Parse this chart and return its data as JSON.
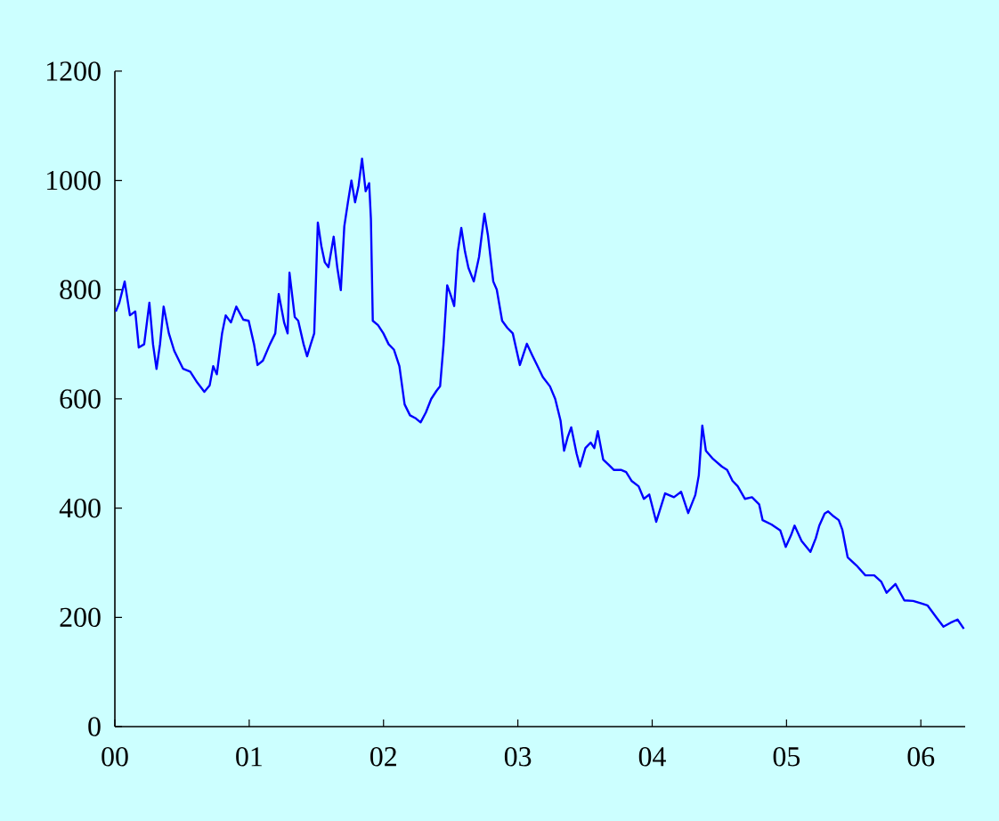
{
  "chart_data": {
    "type": "line",
    "x": [
      2000.007,
      2000.033,
      2000.073,
      2000.112,
      2000.152,
      2000.178,
      2000.218,
      2000.257,
      2000.284,
      2000.31,
      2000.336,
      2000.363,
      2000.402,
      2000.442,
      2000.508,
      2000.561,
      2000.613,
      2000.666,
      2000.706,
      2000.732,
      2000.759,
      2000.798,
      2000.825,
      2000.864,
      2000.904,
      2000.956,
      2000.996,
      2001.036,
      2001.062,
      2001.102,
      2001.154,
      2001.194,
      2001.22,
      2001.26,
      2001.286,
      2001.3,
      2001.339,
      2001.365,
      2001.405,
      2001.431,
      2001.458,
      2001.484,
      2001.511,
      2001.537,
      2001.563,
      2001.59,
      2001.629,
      2001.656,
      2001.682,
      2001.708,
      2001.735,
      2001.761,
      2001.788,
      2001.814,
      2001.84,
      2001.867,
      2001.893,
      2001.906,
      2001.92,
      2001.959,
      2001.999,
      2002.038,
      2002.078,
      2002.118,
      2002.157,
      2002.197,
      2002.236,
      2002.276,
      2002.315,
      2002.355,
      2002.395,
      2002.421,
      2002.447,
      2002.474,
      2002.5,
      2002.526,
      2002.553,
      2002.579,
      2002.606,
      2002.632,
      2002.672,
      2002.711,
      2002.751,
      2002.777,
      2002.817,
      2002.843,
      2002.883,
      2002.922,
      2002.962,
      2003.015,
      2003.067,
      2003.107,
      2003.147,
      2003.186,
      2003.239,
      2003.278,
      2003.318,
      2003.344,
      2003.371,
      2003.397,
      2003.437,
      2003.463,
      2003.503,
      2003.542,
      2003.569,
      2003.595,
      2003.635,
      2003.674,
      2003.714,
      2003.767,
      2003.806,
      2003.846,
      2003.899,
      2003.938,
      2003.978,
      2004.03,
      2004.096,
      2004.162,
      2004.215,
      2004.268,
      2004.321,
      2004.347,
      2004.373,
      2004.4,
      2004.453,
      2004.519,
      2004.558,
      2004.598,
      2004.637,
      2004.69,
      2004.743,
      2004.796,
      2004.822,
      2004.888,
      2004.954,
      2004.994,
      2005.033,
      2005.06,
      2005.112,
      2005.178,
      2005.218,
      2005.244,
      2005.284,
      2005.31,
      2005.35,
      2005.389,
      2005.416,
      2005.455,
      2005.521,
      2005.587,
      2005.653,
      2005.706,
      2005.745,
      2005.811,
      2005.877,
      2005.943,
      2006.009,
      2006.049,
      2006.115,
      2006.168,
      2006.22,
      2006.273,
      2006.32
    ],
    "values": [
      760,
      776,
      815,
      753,
      760,
      694,
      700,
      776,
      700,
      655,
      700,
      769,
      720,
      688,
      655,
      650,
      630,
      613,
      625,
      660,
      645,
      720,
      753,
      740,
      769,
      745,
      743,
      700,
      662,
      670,
      700,
      720,
      792,
      740,
      720,
      831,
      750,
      743,
      700,
      678,
      700,
      720,
      923,
      880,
      850,
      841,
      897,
      840,
      799,
      916,
      960,
      1000,
      960,
      990,
      1040,
      980,
      995,
      930,
      743,
      735,
      720,
      700,
      690,
      660,
      590,
      570,
      565,
      557,
      575,
      600,
      615,
      623,
      700,
      808,
      790,
      770,
      870,
      913,
      870,
      840,
      815,
      860,
      939,
      900,
      815,
      800,
      743,
      730,
      720,
      662,
      701,
      680,
      660,
      640,
      623,
      600,
      560,
      505,
      530,
      548,
      500,
      476,
      510,
      520,
      510,
      541,
      489,
      480,
      470,
      470,
      466,
      450,
      440,
      417,
      425,
      375,
      427,
      420,
      430,
      391,
      424,
      460,
      551,
      505,
      490,
      476,
      470,
      450,
      440,
      417,
      420,
      407,
      378,
      370,
      359,
      329,
      350,
      368,
      340,
      320,
      345,
      368,
      390,
      394,
      385,
      378,
      360,
      310,
      295,
      277,
      277,
      265,
      245,
      261,
      231,
      230,
      225,
      222,
      200,
      183,
      190,
      196,
      179
    ],
    "color": "#0000ff",
    "xlim": [
      2000,
      2006.33
    ],
    "xticks": [
      {
        "value": 2000,
        "label": "00"
      },
      {
        "value": 2001,
        "label": "01"
      },
      {
        "value": 2002,
        "label": "02"
      },
      {
        "value": 2003,
        "label": "03"
      },
      {
        "value": 2004,
        "label": "04"
      },
      {
        "value": 2005,
        "label": "05"
      },
      {
        "value": 2006,
        "label": "06"
      }
    ],
    "ylim": [
      0,
      1200
    ],
    "yticks": [
      0,
      200,
      400,
      600,
      800,
      1000,
      1200
    ],
    "grid": false,
    "marker": "none",
    "line_style": "solid"
  }
}
